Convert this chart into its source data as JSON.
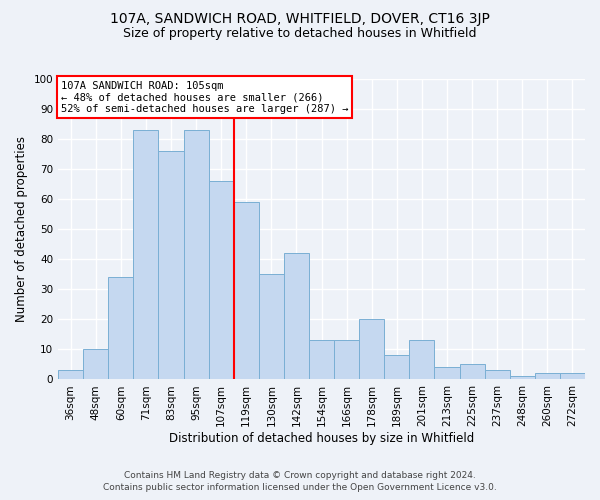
{
  "title": "107A, SANDWICH ROAD, WHITFIELD, DOVER, CT16 3JP",
  "subtitle": "Size of property relative to detached houses in Whitfield",
  "xlabel": "Distribution of detached houses by size in Whitfield",
  "ylabel": "Number of detached properties",
  "footnote1": "Contains HM Land Registry data © Crown copyright and database right 2024.",
  "footnote2": "Contains public sector information licensed under the Open Government Licence v3.0.",
  "bar_labels": [
    "36sqm",
    "48sqm",
    "60sqm",
    "71sqm",
    "83sqm",
    "95sqm",
    "107sqm",
    "119sqm",
    "130sqm",
    "142sqm",
    "154sqm",
    "166sqm",
    "178sqm",
    "189sqm",
    "201sqm",
    "213sqm",
    "225sqm",
    "237sqm",
    "248sqm",
    "260sqm",
    "272sqm"
  ],
  "bar_values": [
    3,
    10,
    34,
    83,
    76,
    83,
    66,
    59,
    35,
    42,
    13,
    13,
    20,
    8,
    13,
    4,
    5,
    3,
    1,
    2,
    2
  ],
  "bar_color": "#c5d8f0",
  "bar_edge_color": "#7aafd4",
  "vline_x_index": 6,
  "vline_color": "red",
  "annotation_title": "107A SANDWICH ROAD: 105sqm",
  "annotation_line1": "← 48% of detached houses are smaller (266)",
  "annotation_line2": "52% of semi-detached houses are larger (287) →",
  "annotation_box_edge": "red",
  "annotation_bg": "white",
  "ylim": [
    0,
    100
  ],
  "yticks": [
    0,
    10,
    20,
    30,
    40,
    50,
    60,
    70,
    80,
    90,
    100
  ],
  "background_color": "#eef2f8",
  "grid_color": "white",
  "title_fontsize": 10,
  "subtitle_fontsize": 9,
  "axis_label_fontsize": 8.5,
  "tick_fontsize": 7.5,
  "footnote_fontsize": 6.5
}
